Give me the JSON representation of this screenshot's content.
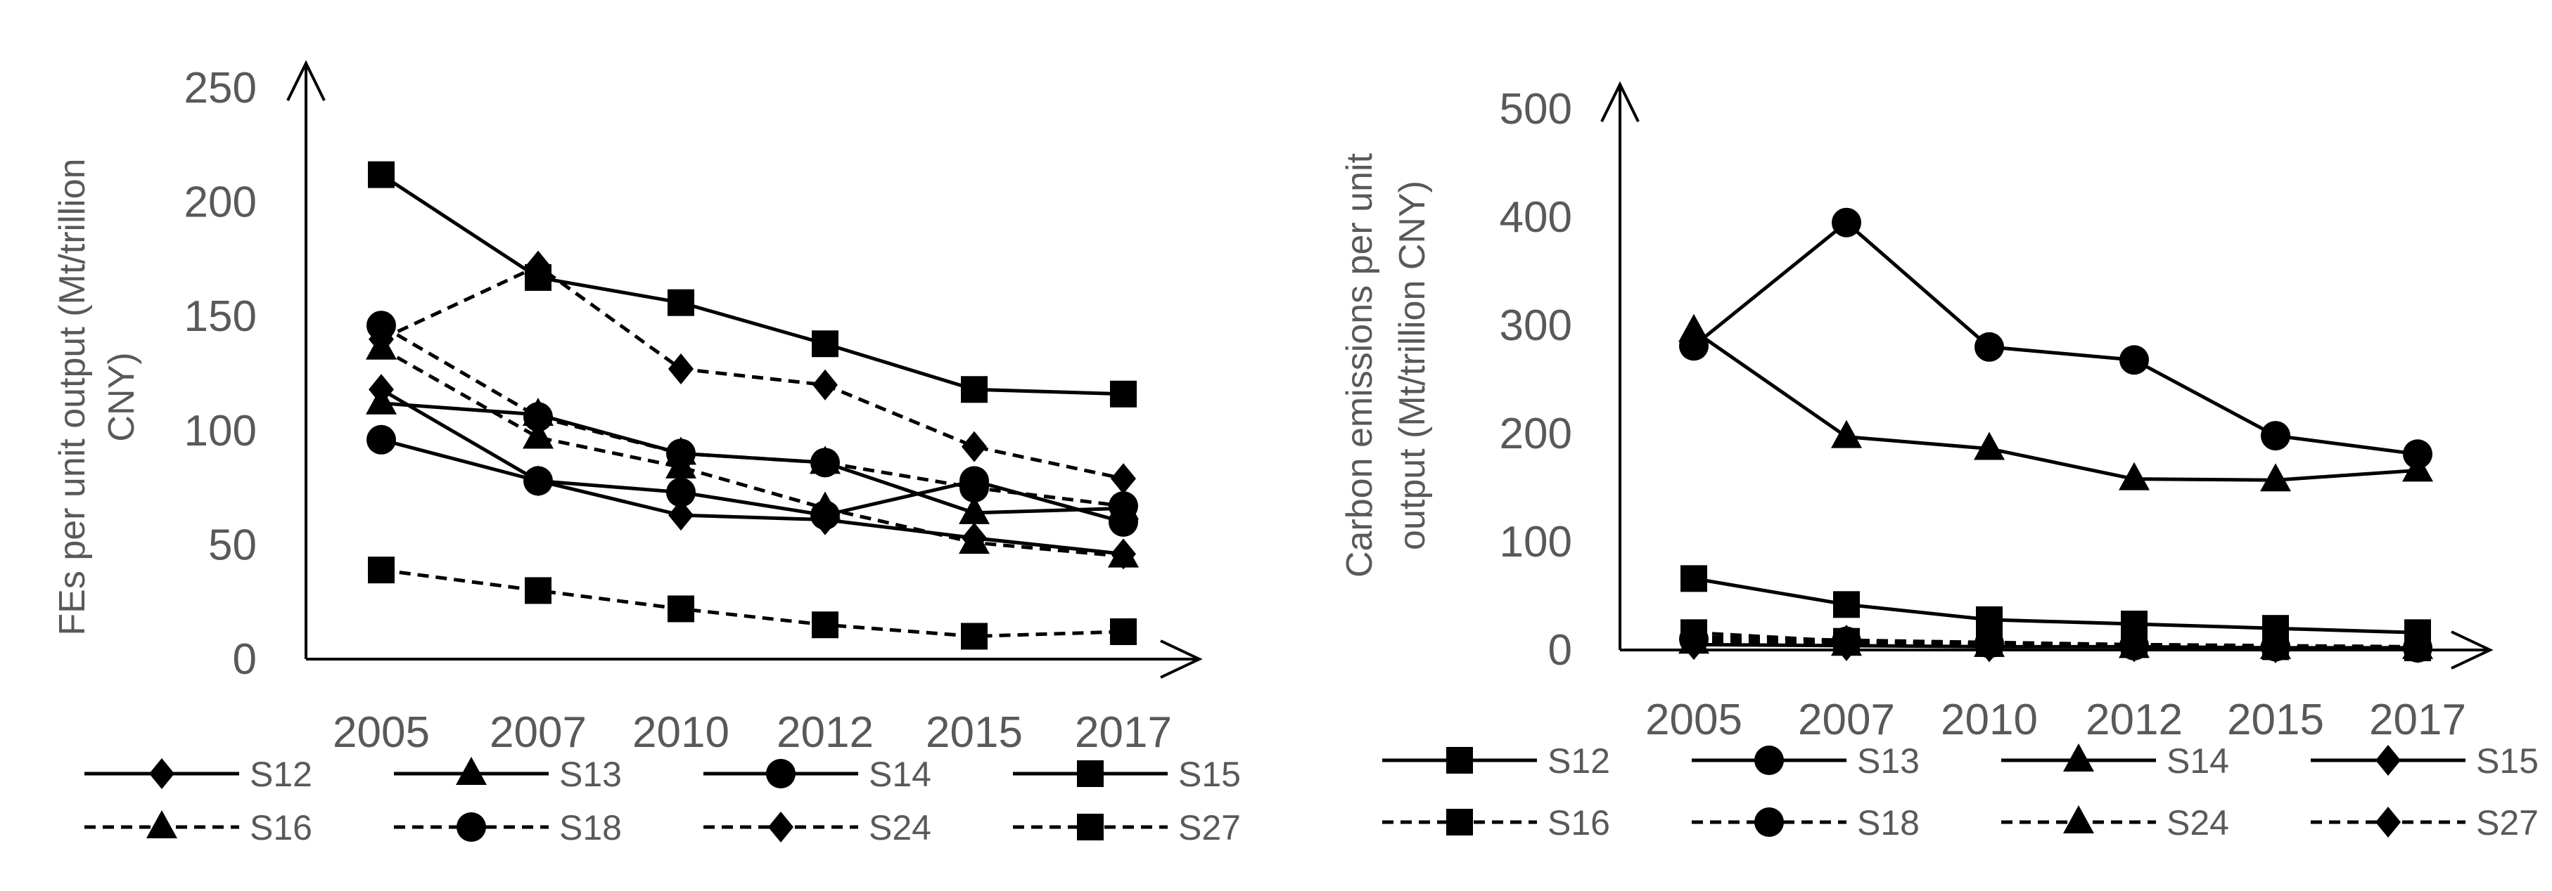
{
  "chart_data": [
    {
      "type": "line",
      "ylabel_lines": [
        "FEs per unit output (Mt/trillion",
        "CNY)"
      ],
      "xlabel": "",
      "categories": [
        "2005",
        "2007",
        "2010",
        "2012",
        "2015",
        "2017"
      ],
      "ylim": [
        0,
        250
      ],
      "yticks": [
        "0",
        "50",
        "100",
        "150",
        "200",
        "250"
      ],
      "grid": false,
      "legend": "bottom",
      "series": [
        {
          "name": "S12",
          "marker": "diamond",
          "dash": "solid",
          "values": [
            118,
            78,
            63,
            61,
            53,
            46
          ]
        },
        {
          "name": "S13",
          "marker": "triangle",
          "dash": "solid",
          "values": [
            112,
            107,
            90,
            86,
            64,
            66
          ]
        },
        {
          "name": "S14",
          "marker": "circle",
          "dash": "solid",
          "values": [
            96,
            78,
            73,
            63,
            78,
            60
          ]
        },
        {
          "name": "S15",
          "marker": "square",
          "dash": "solid",
          "values": [
            212,
            167,
            156,
            138,
            118,
            116
          ]
        },
        {
          "name": "S16",
          "marker": "triangle",
          "dash": "dashed",
          "values": [
            136,
            97,
            84,
            66,
            51,
            45
          ]
        },
        {
          "name": "S18",
          "marker": "circle",
          "dash": "dashed",
          "values": [
            146,
            106,
            90,
            86,
            75,
            67
          ]
        },
        {
          "name": "S24",
          "marker": "diamond",
          "dash": "dashed",
          "values": [
            140,
            172,
            127,
            120,
            93,
            79
          ]
        },
        {
          "name": "S27",
          "marker": "square",
          "dash": "dashed",
          "values": [
            39,
            30,
            22,
            15,
            10,
            12
          ]
        }
      ]
    },
    {
      "type": "line",
      "ylabel_lines": [
        "Carbon emissions per unit",
        "output (Mt/trillion CNY)"
      ],
      "xlabel": "",
      "categories": [
        "2005",
        "2007",
        "2010",
        "2012",
        "2015",
        "2017"
      ],
      "ylim": [
        0,
        500
      ],
      "yticks": [
        "0",
        "100",
        "200",
        "300",
        "400",
        "500"
      ],
      "grid": false,
      "legend": "bottom",
      "series": [
        {
          "name": "S12",
          "marker": "square",
          "dash": "solid",
          "values": [
            66,
            42,
            28,
            24,
            20,
            16
          ]
        },
        {
          "name": "S13",
          "marker": "circle",
          "dash": "solid",
          "values": [
            281,
            395,
            280,
            268,
            198,
            181
          ]
        },
        {
          "name": "S14",
          "marker": "triangle",
          "dash": "solid",
          "values": [
            295,
            197,
            186,
            158,
            157,
            166
          ]
        },
        {
          "name": "S15",
          "marker": "diamond",
          "dash": "solid",
          "values": [
            5,
            4,
            3,
            3,
            2,
            2
          ]
        },
        {
          "name": "S16",
          "marker": "square",
          "dash": "dashed",
          "values": [
            16,
            8,
            6,
            5,
            3,
            2
          ]
        },
        {
          "name": "S18",
          "marker": "circle",
          "dash": "dashed",
          "values": [
            10,
            8,
            6,
            4,
            3,
            2
          ]
        },
        {
          "name": "S24",
          "marker": "triangle",
          "dash": "dashed",
          "values": [
            7,
            5,
            4,
            3,
            2,
            2
          ]
        },
        {
          "name": "S27",
          "marker": "diamond",
          "dash": "dashed",
          "values": [
            12,
            9,
            7,
            5,
            4,
            3
          ]
        }
      ]
    }
  ]
}
